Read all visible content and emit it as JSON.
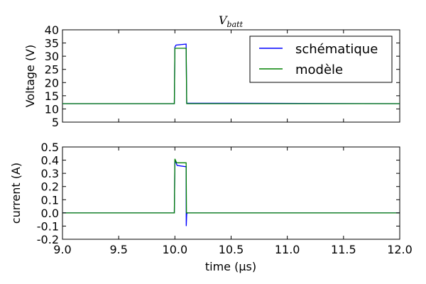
{
  "chart_data": [
    {
      "type": "line",
      "title": "V_batt",
      "title_main": "V",
      "title_sub": "batt",
      "xlabel": "",
      "ylabel": "Voltage (V)",
      "xlim": [
        9.0,
        12.0
      ],
      "ylim": [
        5,
        40
      ],
      "yticks": [
        5,
        10,
        15,
        20,
        25,
        30,
        35,
        40
      ],
      "grid": false,
      "legend": "top-right",
      "series": [
        {
          "name": "schématique",
          "color": "#0000ff",
          "x": [
            9.0,
            9.995,
            10.0,
            10.01,
            10.1,
            10.105,
            12.0
          ],
          "y": [
            12,
            12,
            33.5,
            34.2,
            34.6,
            12.2,
            12
          ]
        },
        {
          "name": "modèle",
          "color": "#008000",
          "x": [
            9.0,
            9.995,
            10.0,
            10.1,
            10.105,
            12.0
          ],
          "y": [
            12,
            12,
            33,
            33,
            12,
            12
          ]
        }
      ]
    },
    {
      "type": "line",
      "title": "",
      "xlabel": "time (µs)",
      "ylabel": "current (A)",
      "xlim": [
        9.0,
        12.0
      ],
      "ylim": [
        -0.2,
        0.5
      ],
      "yticks": [
        -0.2,
        -0.1,
        0.0,
        0.1,
        0.2,
        0.3,
        0.4,
        0.5
      ],
      "xticks": [
        9.0,
        9.5,
        10.0,
        10.5,
        11.0,
        11.5,
        12.0
      ],
      "grid": false,
      "series": [
        {
          "name": "schématique",
          "color": "#0000ff",
          "x": [
            9.0,
            9.995,
            10.0,
            10.02,
            10.1,
            10.101,
            10.105,
            10.11,
            12.0
          ],
          "y": [
            0,
            0,
            0.4,
            0.36,
            0.35,
            -0.1,
            -0.01,
            0,
            0
          ]
        },
        {
          "name": "modèle",
          "color": "#008000",
          "x": [
            9.0,
            9.995,
            10.0,
            10.015,
            10.1,
            10.103,
            12.0
          ],
          "y": [
            0,
            0,
            0.41,
            0.38,
            0.38,
            0,
            0
          ]
        }
      ]
    }
  ]
}
